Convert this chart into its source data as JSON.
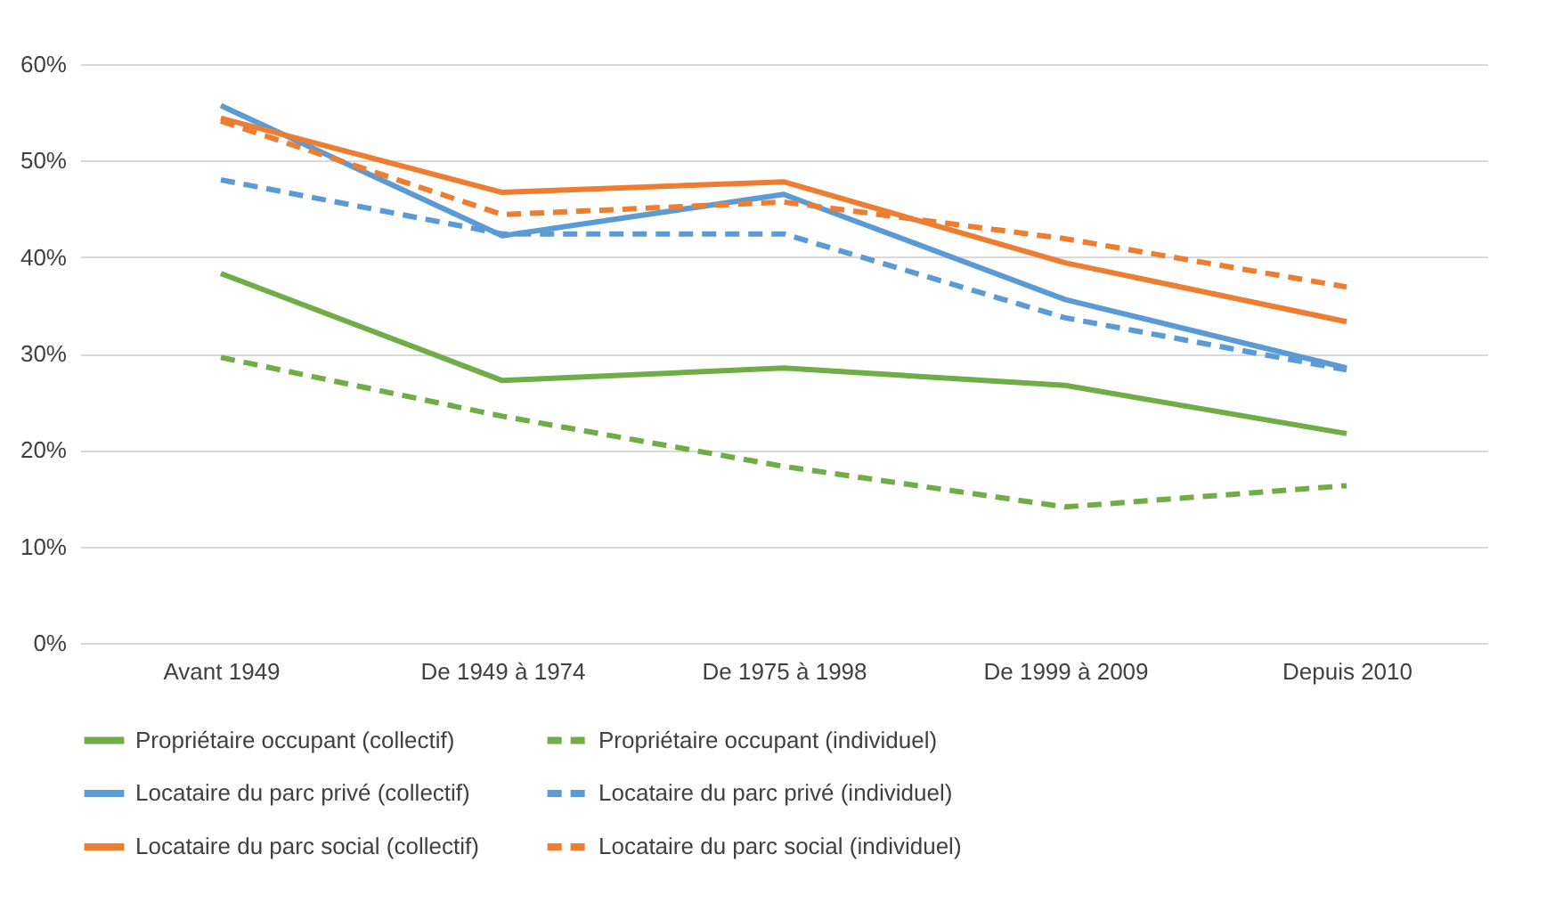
{
  "chart_data": {
    "type": "line",
    "categories": [
      "Avant 1949",
      "De 1949 à 1974",
      "De 1975 à 1998",
      "De 1999 à 2009",
      "Depuis 2010"
    ],
    "ylim": [
      0,
      60
    ],
    "yticks": [
      {
        "value": 0,
        "label": "0%"
      },
      {
        "value": 10,
        "label": "10%"
      },
      {
        "value": 20,
        "label": "20%"
      },
      {
        "value": 30,
        "label": "30%"
      },
      {
        "value": 40,
        "label": "40%"
      },
      {
        "value": 50,
        "label": "50%"
      },
      {
        "value": 60,
        "label": "60%"
      }
    ],
    "grid": "y",
    "legend": "bottom",
    "marker": "none",
    "series": [
      {
        "name": "Propriétaire occupant (collectif)",
        "color": "#70ad47",
        "line_style": "solid",
        "values": [
          38.3,
          27.2,
          28.5,
          26.7,
          21.7
        ]
      },
      {
        "name": "Propriétaire occupant (individuel)",
        "color": "#70ad47",
        "line_style": "dashed",
        "values": [
          29.6,
          23.5,
          18.3,
          14.1,
          16.3
        ]
      },
      {
        "name": "Locataire du parc privé (collectif)",
        "color": "#5b9bd5",
        "line_style": "solid",
        "values": [
          55.7,
          42.2,
          46.5,
          35.6,
          28.5
        ]
      },
      {
        "name": "Locataire du parc privé (individuel)",
        "color": "#5b9bd5",
        "line_style": "dashed",
        "values": [
          48,
          42.4,
          42.4,
          33.7,
          28.3
        ]
      },
      {
        "name": "Locataire du parc social (collectif)",
        "color": "#ed7d31",
        "line_style": "solid",
        "values": [
          54.4,
          46.7,
          47.8,
          39.4,
          33.3
        ]
      },
      {
        "name": "Locataire du parc social (individuel)",
        "color": "#ed7d31",
        "line_style": "dashed",
        "values": [
          54.1,
          44.4,
          45.7,
          41.9,
          36.9
        ]
      }
    ]
  }
}
